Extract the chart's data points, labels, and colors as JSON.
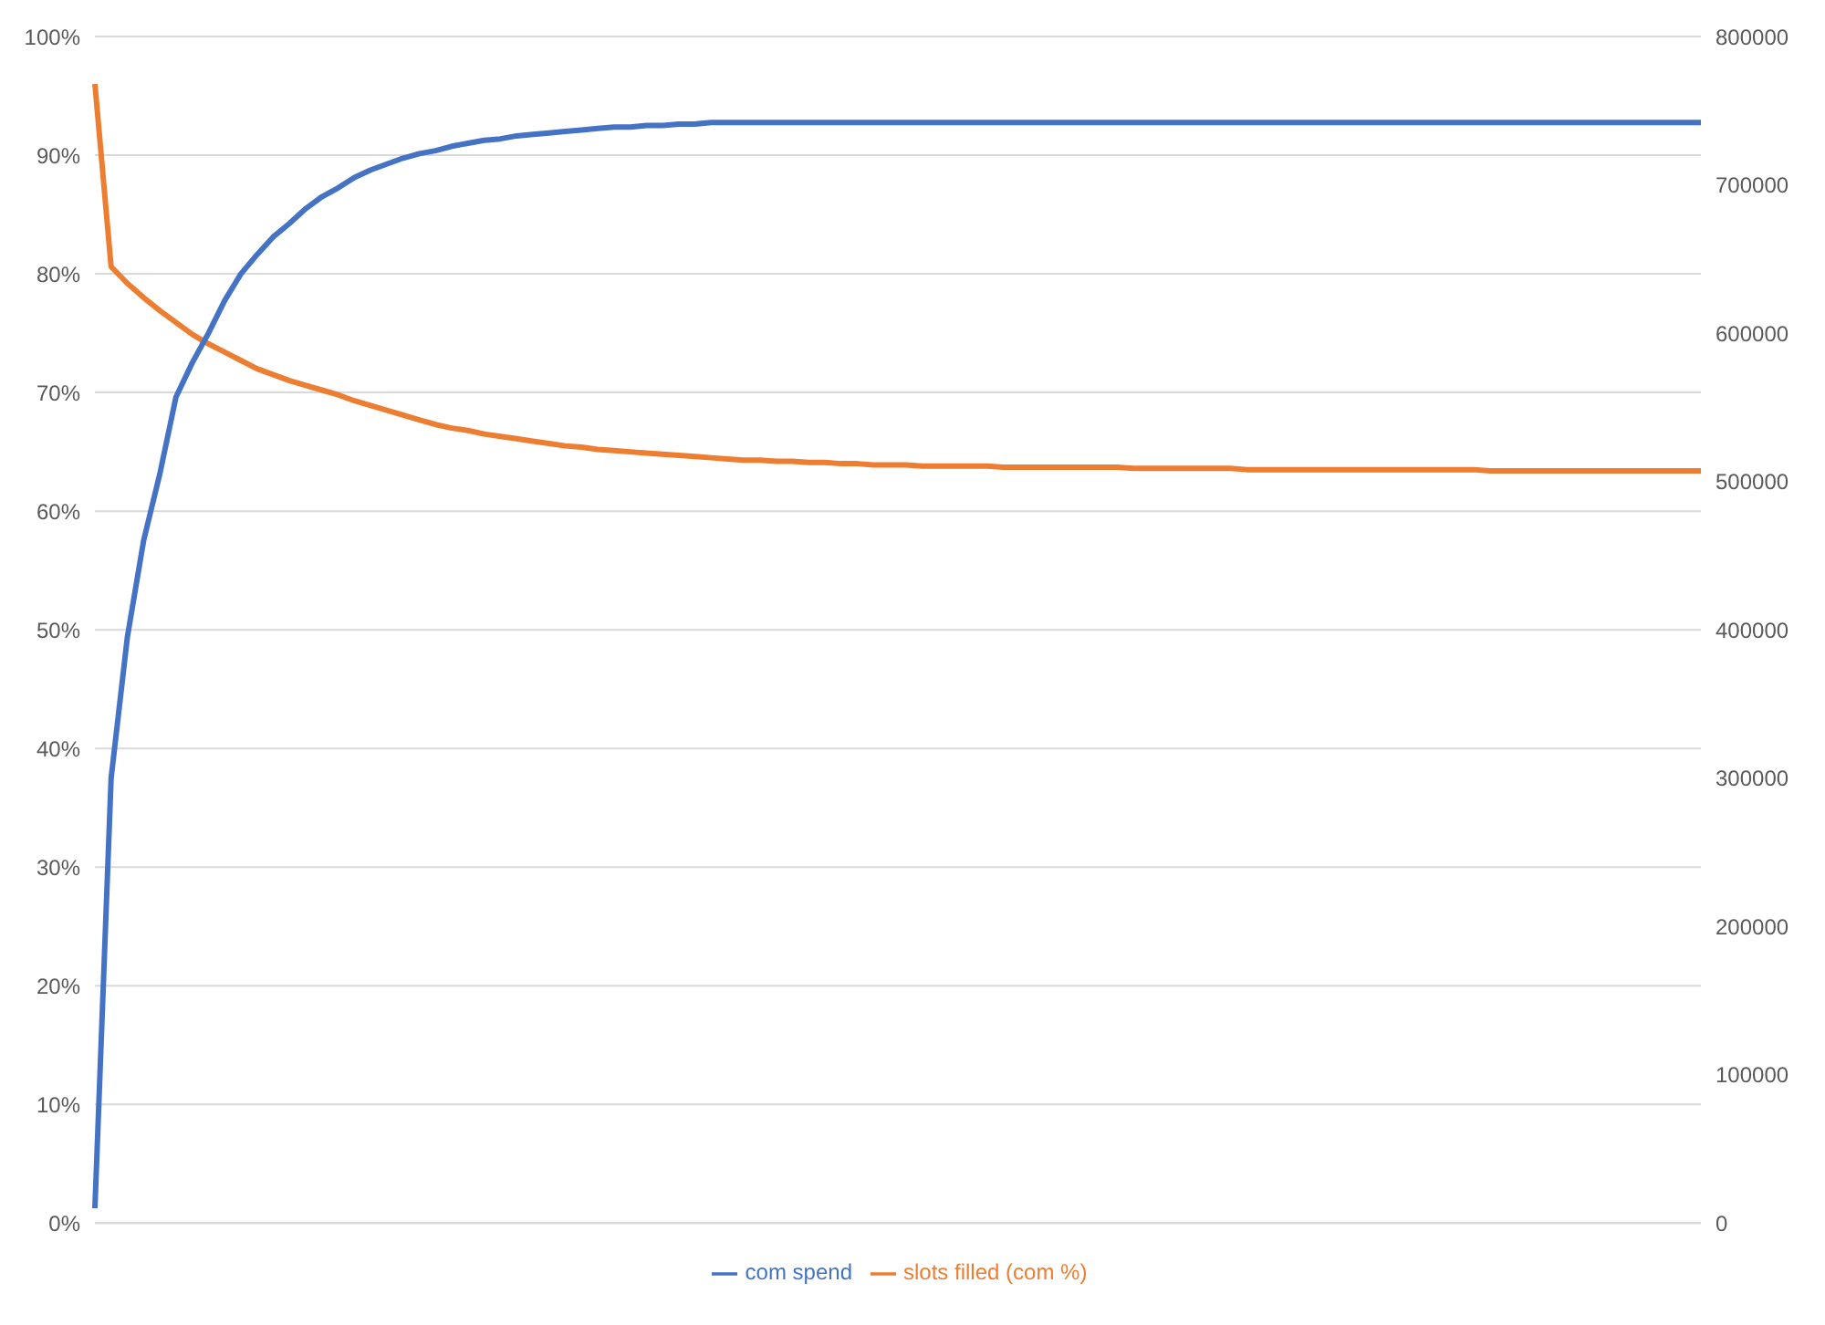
{
  "chart_data": {
    "type": "line",
    "categories": [
      null,
      null,
      null,
      null,
      null,
      null,
      null,
      null,
      null,
      null,
      null,
      null,
      null,
      null,
      null,
      null,
      null,
      null,
      null,
      null,
      null,
      null,
      null,
      null,
      null,
      null,
      null,
      null,
      null,
      null,
      null,
      null,
      null,
      null,
      null,
      null,
      null,
      null,
      null,
      null,
      null,
      null,
      null,
      null,
      null,
      null,
      null,
      null,
      null,
      null,
      null,
      null,
      null,
      null,
      null,
      null,
      null,
      null,
      null,
      null,
      null,
      null,
      null,
      null,
      null,
      null,
      null,
      null,
      null,
      null,
      null,
      null,
      null,
      null,
      null,
      null,
      null,
      null,
      null,
      null,
      null,
      null,
      null,
      null,
      null,
      null,
      null,
      null,
      null,
      null,
      null,
      null,
      null,
      null,
      null,
      null,
      null,
      null,
      null,
      null
    ],
    "series": [
      {
        "name": "slots filled (com %)",
        "color": "#ed7d31",
        "values": [
          96,
          80.6,
          79.2,
          78,
          76.9,
          75.9,
          74.9,
          74.1,
          73.4,
          72.7,
          72,
          71.5,
          71,
          70.6,
          70.2,
          69.8,
          69.3,
          68.9,
          68.5,
          68.1,
          67.7,
          67.3,
          67,
          66.8,
          66.5,
          66.3,
          66.1,
          65.9,
          65.7,
          65.5,
          65.4,
          65.2,
          65.1,
          65,
          64.9,
          64.8,
          64.7,
          64.6,
          64.5,
          64.4,
          64.3,
          64.3,
          64.2,
          64.2,
          64.1,
          64.1,
          64,
          64,
          63.9,
          63.9,
          63.9,
          63.8,
          63.8,
          63.8,
          63.8,
          63.8,
          63.7,
          63.7,
          63.7,
          63.7,
          63.7,
          63.7,
          63.7,
          63.7,
          63.6,
          63.6,
          63.6,
          63.6,
          63.6,
          63.6,
          63.6,
          63.5,
          63.5,
          63.5,
          63.5,
          63.5,
          63.5,
          63.5,
          63.5,
          63.5,
          63.5,
          63.5,
          63.5,
          63.5,
          63.5,
          63.5,
          63.4,
          63.4,
          63.4,
          63.4,
          63.4,
          63.4,
          63.4,
          63.4,
          63.4,
          63.4,
          63.4,
          63.4,
          63.4,
          63.4
        ]
      },
      {
        "name": "com spend",
        "color": "#4472c4",
        "axis": "y2",
        "values": [
          10000,
          300000,
          395000,
          460000,
          505000,
          557000,
          580000,
          600000,
          622000,
          640000,
          653000,
          665000,
          674000,
          684000,
          692000,
          698000,
          705000,
          710000,
          714000,
          718000,
          721000,
          723000,
          726000,
          728000,
          730000,
          731000,
          733000,
          734000,
          735000,
          736000,
          737000,
          738000,
          739000,
          739000,
          740000,
          740000,
          741000,
          741000,
          742000,
          742000,
          742000,
          742000,
          742000,
          742000,
          742000,
          742000,
          742000,
          742000,
          742000,
          742000,
          742000,
          742000,
          742000,
          742000,
          742000,
          742000,
          742000,
          742000,
          742000,
          742000,
          742000,
          742000,
          742000,
          742000,
          742000,
          742000,
          742000,
          742000,
          742000,
          742000,
          742000,
          742000,
          742000,
          742000,
          742000,
          742000,
          742000,
          742000,
          742000,
          742000,
          742000,
          742000,
          742000,
          742000,
          742000,
          742000,
          742000,
          742000,
          742000,
          742000,
          742000,
          742000,
          742000,
          742000,
          742000,
          742000,
          742000,
          742000,
          742000,
          742000
        ]
      }
    ],
    "ylim": [
      0,
      100
    ],
    "yticks": [
      {
        "value": 0,
        "label": "0%"
      },
      {
        "value": 10,
        "label": "10%"
      },
      {
        "value": 20,
        "label": "20%"
      },
      {
        "value": 30,
        "label": "30%"
      },
      {
        "value": 40,
        "label": "40%"
      },
      {
        "value": 50,
        "label": "50%"
      },
      {
        "value": 60,
        "label": "60%"
      },
      {
        "value": 70,
        "label": "70%"
      },
      {
        "value": 80,
        "label": "80%"
      },
      {
        "value": 90,
        "label": "90%"
      },
      {
        "value": 100,
        "label": "100%"
      }
    ],
    "y2lim": [
      0,
      800000
    ],
    "y2ticks": [
      0,
      100000,
      200000,
      300000,
      400000,
      500000,
      600000,
      700000,
      800000
    ],
    "grid": "y",
    "legend": "bottom",
    "marker": "none",
    "line_style": "solid"
  }
}
